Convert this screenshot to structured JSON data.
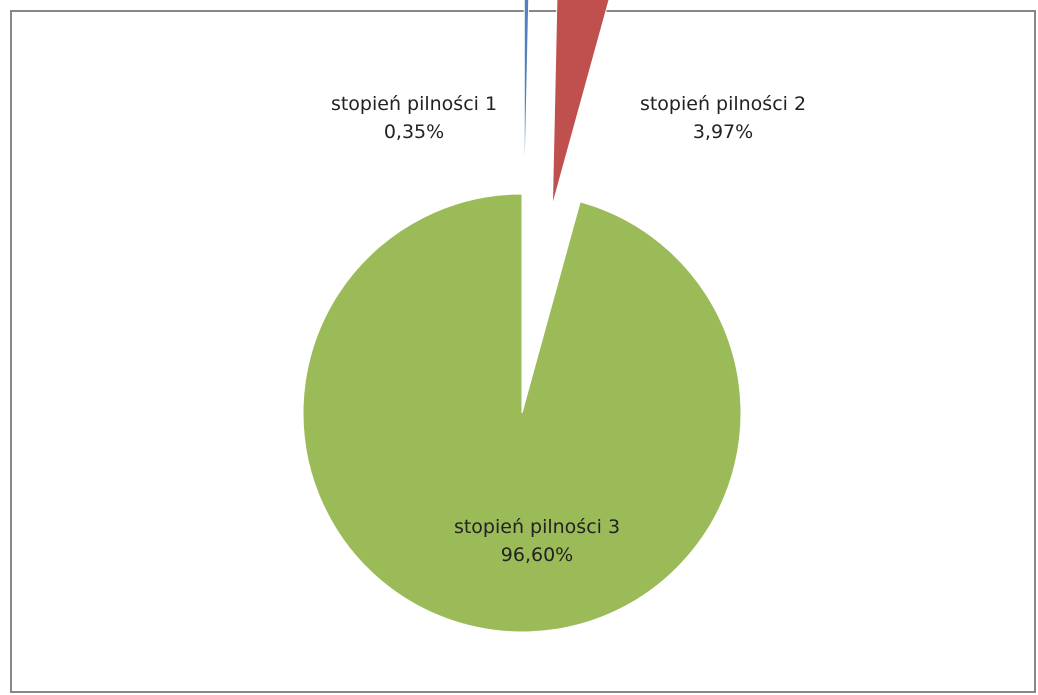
{
  "chart_data": {
    "type": "pie",
    "title": "",
    "slices": [
      {
        "name": "stopień pilności 1",
        "value": 0.35,
        "value_label": "0,35%",
        "color": "#4f81bd",
        "exploded": true
      },
      {
        "name": "stopień pilności 2",
        "value": 3.97,
        "value_label": "3,97%",
        "color": "#c0504d",
        "exploded": true
      },
      {
        "name": "stopień pilności 3",
        "value": 96.6,
        "value_label": "96,60%",
        "color": "#9bbb59",
        "exploded": false
      }
    ],
    "start_angle": "12 o'clock",
    "direction": "clockwise",
    "legend": "none",
    "data_labels": true
  }
}
